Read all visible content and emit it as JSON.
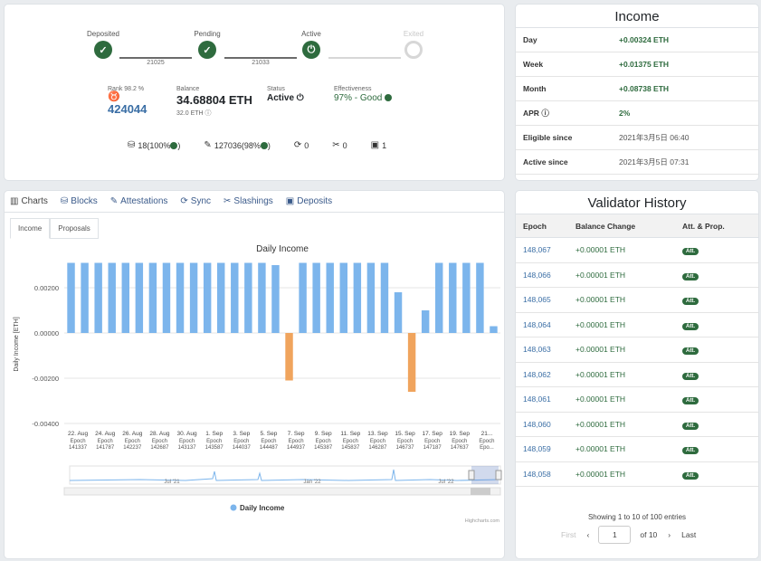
{
  "overview": {
    "steps": [
      {
        "label": "Deposited",
        "done": true
      },
      {
        "label": "Pending",
        "done": true
      },
      {
        "label": "Active",
        "done": true
      },
      {
        "label": "Exited",
        "done": false
      }
    ],
    "link_values": [
      "21025",
      "21033"
    ],
    "rank_label": "Rank 98.2 %",
    "index": "424044",
    "balance_label": "Balance",
    "balance": "34.68804 ETH",
    "effective_balance": "32.0 ETH",
    "status_label": "Status",
    "status": "Active",
    "effectiveness_label": "Effectiveness",
    "effectiveness": "97% - Good",
    "counters": [
      {
        "icon": "blocks-icon",
        "glyph": "⛁",
        "text": "18(100%"
      },
      {
        "icon": "attestations-icon",
        "glyph": "✎",
        "text": "127036(98%"
      },
      {
        "icon": "sync-icon",
        "glyph": "⟳",
        "text": "0"
      },
      {
        "icon": "slashings-icon",
        "glyph": "✂",
        "text": "0"
      },
      {
        "icon": "deposits-icon",
        "glyph": "▣",
        "text": "1"
      }
    ]
  },
  "income": {
    "title": "Income",
    "rows": [
      {
        "key": "Day",
        "value": "+0.00324 ETH",
        "plain": false
      },
      {
        "key": "Week",
        "value": "+0.01375 ETH",
        "plain": false
      },
      {
        "key": "Month",
        "value": "+0.08738 ETH",
        "plain": false
      },
      {
        "key": "APR",
        "value": "2%",
        "plain": false
      },
      {
        "key": "Eligible since",
        "value": "2021年3月5日 06:40",
        "plain": true
      },
      {
        "key": "Active since",
        "value": "2021年3月5日 07:31",
        "plain": true
      }
    ]
  },
  "tabs": [
    {
      "label": "Charts",
      "glyph": "▥",
      "name": "tab-charts",
      "active": true
    },
    {
      "label": "Blocks",
      "glyph": "⛁",
      "name": "tab-blocks",
      "active": false
    },
    {
      "label": "Attestations",
      "glyph": "✎",
      "name": "tab-attestations",
      "active": false
    },
    {
      "label": "Sync",
      "glyph": "⟳",
      "name": "tab-sync",
      "active": false
    },
    {
      "label": "Slashings",
      "glyph": "✂",
      "name": "tab-slashings",
      "active": false
    },
    {
      "label": "Deposits",
      "glyph": "▣",
      "name": "tab-deposits",
      "active": false
    }
  ],
  "subtabs": [
    {
      "label": "Income",
      "active": true
    },
    {
      "label": "Proposals",
      "active": false
    }
  ],
  "chart_data": {
    "type": "bar",
    "title": "Daily Income",
    "ylabel": "Daily Income [ETH]",
    "ylim": [
      -0.004,
      0.003
    ],
    "yticks": [
      "0.00200",
      "0.00000",
      "-0.00200",
      "-0.00400"
    ],
    "legend": "Daily Income",
    "credits": "Highcharts.com",
    "values": [
      0.0031,
      0.0031,
      0.0031,
      0.0031,
      0.0031,
      0.0031,
      0.0031,
      0.0031,
      0.0031,
      0.0031,
      0.0031,
      0.0031,
      0.0031,
      0.0031,
      0.0031,
      0.003,
      -0.0021,
      0.0031,
      0.0031,
      0.0031,
      0.0031,
      0.0031,
      0.0031,
      0.0031,
      0.0018,
      -0.0026,
      0.001,
      0.0031,
      0.0031,
      0.0031,
      0.0031,
      0.0003
    ],
    "negative_color": "#f0a45d",
    "positive_color": "#7cb5ec",
    "xticks": [
      {
        "date": "22. Aug",
        "epoch": "141337"
      },
      {
        "date": "24. Aug",
        "epoch": "141787"
      },
      {
        "date": "26. Aug",
        "epoch": "142237"
      },
      {
        "date": "28. Aug",
        "epoch": "142687"
      },
      {
        "date": "30. Aug",
        "epoch": "143137"
      },
      {
        "date": "1. Sep",
        "epoch": "143587"
      },
      {
        "date": "3. Sep",
        "epoch": "144037"
      },
      {
        "date": "5. Sep",
        "epoch": "144487"
      },
      {
        "date": "7. Sep",
        "epoch": "144937"
      },
      {
        "date": "9. Sep",
        "epoch": "145387"
      },
      {
        "date": "11. Sep",
        "epoch": "145837"
      },
      {
        "date": "13. Sep",
        "epoch": "146287"
      },
      {
        "date": "15. Sep",
        "epoch": "146737"
      },
      {
        "date": "17. Sep",
        "epoch": "147187"
      },
      {
        "date": "19. Sep",
        "epoch": "147637"
      },
      {
        "date": "21...",
        "epoch": "Epo..."
      }
    ],
    "epoch_word": "Epoch",
    "navigator_labels": [
      "Jul '21",
      "Jan '22",
      "Jul '22"
    ]
  },
  "history": {
    "title": "Validator History",
    "headers": [
      "Epoch",
      "Balance Change",
      "Att. & Prop."
    ],
    "rows": [
      {
        "epoch": "148,067",
        "change": "+0.00001 ETH",
        "badge": "Att."
      },
      {
        "epoch": "148,066",
        "change": "+0.00001 ETH",
        "badge": "Att."
      },
      {
        "epoch": "148,065",
        "change": "+0.00001 ETH",
        "badge": "Att."
      },
      {
        "epoch": "148,064",
        "change": "+0.00001 ETH",
        "badge": "Att."
      },
      {
        "epoch": "148,063",
        "change": "+0.00001 ETH",
        "badge": "Att."
      },
      {
        "epoch": "148,062",
        "change": "+0.00001 ETH",
        "badge": "Att."
      },
      {
        "epoch": "148,061",
        "change": "+0.00001 ETH",
        "badge": "Att."
      },
      {
        "epoch": "148,060",
        "change": "+0.00001 ETH",
        "badge": "Att."
      },
      {
        "epoch": "148,059",
        "change": "+0.00001 ETH",
        "badge": "Att."
      },
      {
        "epoch": "148,058",
        "change": "+0.00001 ETH",
        "badge": "Att."
      }
    ],
    "showing": "Showing 1 to 10 of 100 entries",
    "pager": {
      "first": "First",
      "prev": "‹",
      "page": "1",
      "of": "of 10",
      "next": "›",
      "last": "Last"
    }
  }
}
